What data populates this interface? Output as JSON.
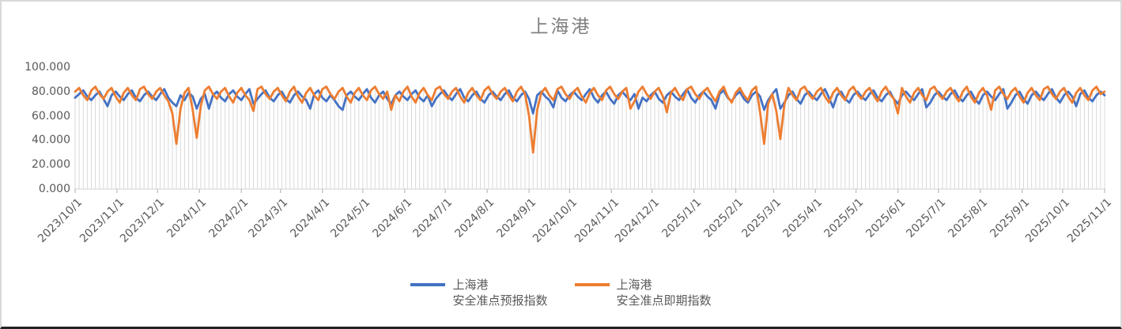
{
  "chart_title": "上海港",
  "legend": {
    "items": [
      {
        "id": "forecast",
        "line1": "上海港",
        "line2": "安全准点预报指数",
        "color": "#4472C4"
      },
      {
        "id": "spot",
        "line1": "上海港",
        "line2": "安全准点即期指数",
        "color": "#ED7D31"
      }
    ]
  },
  "chart_data": {
    "type": "line",
    "title": "上海港",
    "xlabel": "",
    "ylabel": "",
    "ylim": [
      0,
      100
    ],
    "y_ticks": [
      0,
      20,
      40,
      60,
      80,
      100
    ],
    "y_tick_decimals": 3,
    "grid": "vertical-droplines-per-point",
    "legend_position": "bottom",
    "x_start_date": "2023/10/1",
    "x_end_date": "2025/11/1",
    "x_step_days": 3,
    "x_tick_labels": [
      "2023/10/1",
      "2023/11/1",
      "2023/12/1",
      "2024/1/1",
      "2024/2/1",
      "2024/3/1",
      "2024/4/1",
      "2024/5/1",
      "2024/6/1",
      "2024/7/1",
      "2024/8/1",
      "2024/9/1",
      "2024/10/1",
      "2024/11/1",
      "2024/12/1",
      "2025/1/1",
      "2025/2/1",
      "2025/3/1",
      "2025/4/1",
      "2025/5/1",
      "2025/6/1",
      "2025/7/1",
      "2025/8/1",
      "2025/9/1",
      "2025/10/1",
      "2025/11/1"
    ],
    "colors": {
      "droplines": "#d9d9d9",
      "axis_line": "#d9d9d9",
      "tick_mark": "#bfbfbf",
      "axis_text": "#595959",
      "title_text": "#808080",
      "bottom_border": "#222222"
    },
    "series": [
      {
        "name": "上海港 安全准点预报指数",
        "color": "#4472C4",
        "values": [
          75,
          78,
          81,
          76,
          73,
          77,
          80,
          74,
          68,
          77,
          80,
          76,
          73,
          78,
          81,
          75,
          72,
          77,
          80,
          76,
          73,
          78,
          82,
          75,
          71,
          68,
          77,
          73,
          79,
          76,
          66,
          74,
          78,
          66,
          77,
          80,
          75,
          72,
          78,
          81,
          76,
          73,
          78,
          82,
          70,
          74,
          78,
          81,
          75,
          72,
          77,
          80,
          74,
          71,
          77,
          80,
          76,
          73,
          66,
          78,
          81,
          75,
          72,
          77,
          73,
          68,
          65,
          77,
          80,
          76,
          73,
          78,
          82,
          75,
          71,
          77,
          80,
          74,
          70,
          77,
          80,
          76,
          73,
          78,
          81,
          75,
          72,
          77,
          68,
          74,
          78,
          81,
          76,
          73,
          78,
          82,
          75,
          72,
          77,
          80,
          74,
          71,
          77,
          80,
          76,
          73,
          78,
          81,
          75,
          72,
          77,
          80,
          74,
          62,
          77,
          80,
          76,
          73,
          67,
          81,
          75,
          72,
          77,
          80,
          76,
          73,
          78,
          82,
          75,
          71,
          77,
          80,
          74,
          70,
          77,
          80,
          76,
          73,
          78,
          66,
          75,
          72,
          77,
          80,
          74,
          71,
          77,
          80,
          76,
          73,
          78,
          82,
          75,
          71,
          77,
          80,
          76,
          73,
          66,
          78,
          81,
          75,
          72,
          77,
          80,
          74,
          71,
          77,
          80,
          76,
          65,
          73,
          78,
          82,
          66,
          71,
          77,
          80,
          74,
          70,
          77,
          80,
          76,
          73,
          78,
          82,
          75,
          67,
          77,
          80,
          74,
          71,
          77,
          80,
          76,
          73,
          78,
          81,
          75,
          72,
          77,
          80,
          74,
          70,
          77,
          80,
          76,
          73,
          78,
          82,
          67,
          71,
          77,
          80,
          76,
          73,
          78,
          81,
          75,
          72,
          77,
          80,
          74,
          70,
          77,
          80,
          76,
          73,
          78,
          82,
          66,
          71,
          77,
          80,
          74,
          70,
          77,
          80,
          76,
          73,
          78,
          82,
          75,
          71,
          77,
          80,
          76,
          68,
          78,
          81,
          75,
          72,
          77,
          80,
          77
        ]
      },
      {
        "name": "上海港 安全准点即期指数",
        "color": "#ED7D31",
        "values": [
          80,
          83,
          77,
          73,
          81,
          84,
          78,
          74,
          80,
          83,
          76,
          71,
          79,
          83,
          77,
          73,
          82,
          84,
          78,
          74,
          80,
          83,
          77,
          72,
          62,
          37,
          66,
          79,
          83,
          65,
          42,
          68,
          81,
          84,
          78,
          74,
          80,
          83,
          76,
          71,
          79,
          83,
          77,
          73,
          64,
          82,
          84,
          78,
          74,
          80,
          83,
          77,
          72,
          80,
          84,
          76,
          71,
          79,
          83,
          77,
          73,
          82,
          84,
          78,
          74,
          80,
          83,
          76,
          71,
          79,
          83,
          77,
          73,
          81,
          84,
          78,
          74,
          80,
          65,
          77,
          72,
          80,
          84,
          76,
          71,
          79,
          83,
          77,
          73,
          82,
          84,
          78,
          74,
          80,
          83,
          76,
          71,
          79,
          83,
          77,
          73,
          81,
          84,
          78,
          74,
          80,
          83,
          77,
          72,
          80,
          84,
          78,
          60,
          30,
          65,
          79,
          83,
          77,
          73,
          82,
          84,
          78,
          74,
          80,
          83,
          76,
          71,
          79,
          83,
          77,
          73,
          81,
          84,
          78,
          74,
          80,
          83,
          66,
          72,
          80,
          84,
          78,
          74,
          80,
          83,
          76,
          63,
          79,
          83,
          77,
          73,
          82,
          84,
          78,
          74,
          80,
          83,
          77,
          72,
          80,
          84,
          76,
          71,
          79,
          83,
          77,
          73,
          81,
          84,
          63,
          37,
          70,
          78,
          64,
          41,
          69,
          83,
          77,
          73,
          82,
          84,
          78,
          74,
          80,
          83,
          76,
          71,
          79,
          83,
          77,
          73,
          81,
          84,
          78,
          74,
          80,
          83,
          77,
          72,
          80,
          84,
          78,
          74,
          62,
          83,
          76,
          71,
          79,
          83,
          77,
          73,
          82,
          84,
          78,
          74,
          80,
          83,
          77,
          72,
          80,
          84,
          76,
          71,
          79,
          83,
          77,
          65,
          81,
          84,
          78,
          74,
          80,
          83,
          76,
          71,
          79,
          83,
          77,
          73,
          82,
          84,
          78,
          74,
          80,
          83,
          76,
          71,
          79,
          83,
          77,
          73,
          81,
          84,
          78,
          80
        ]
      }
    ]
  }
}
